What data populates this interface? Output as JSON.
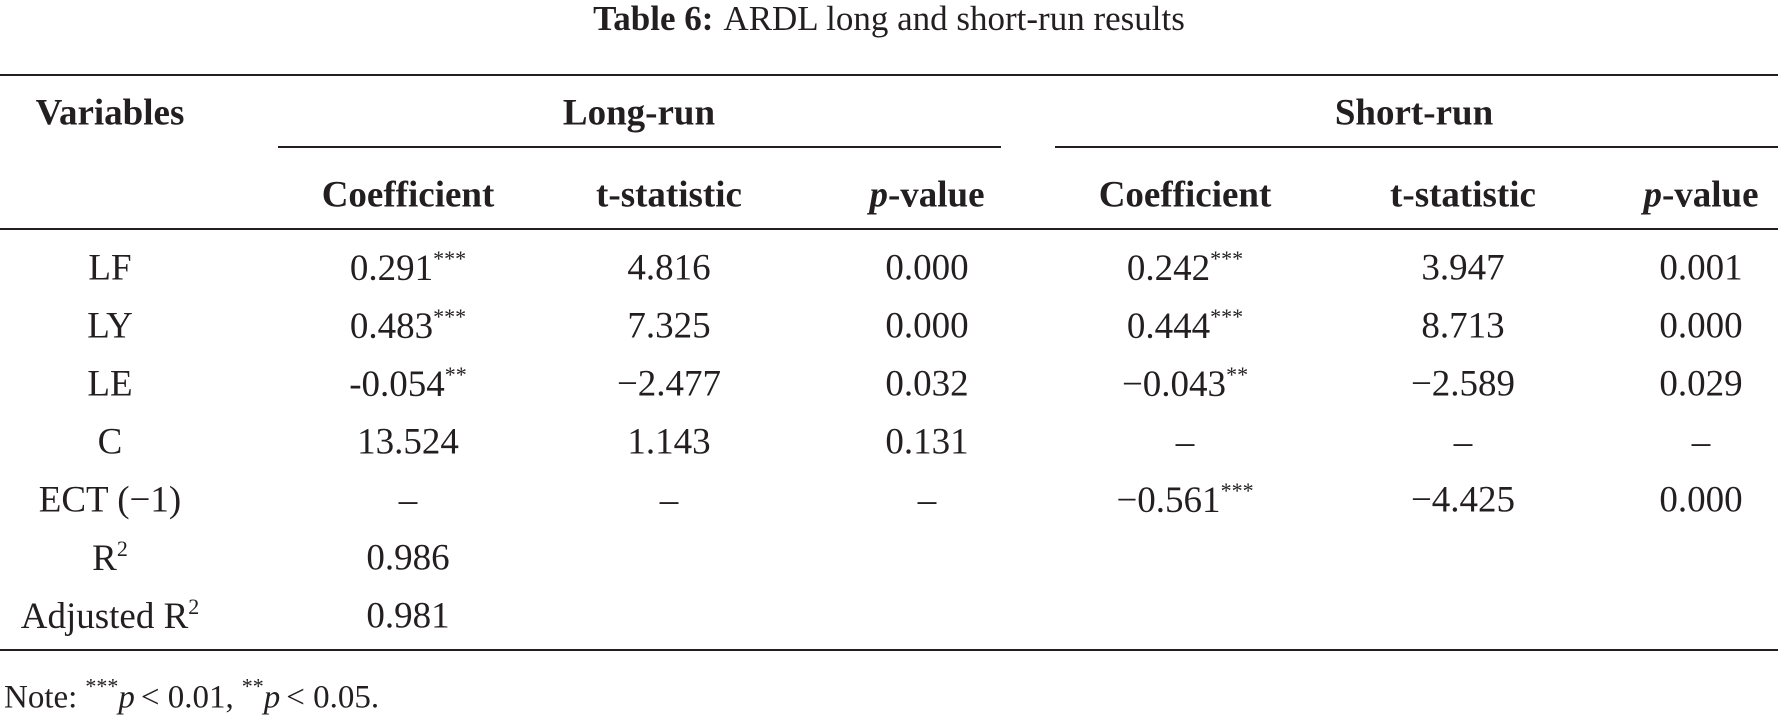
{
  "title": {
    "label": "Table 6:",
    "text": "ARDL long and short-run results"
  },
  "table": {
    "variables_header": "Variables",
    "groups": [
      "Long-run",
      "Short-run"
    ],
    "columns": [
      "Coefficient",
      "t-statistic",
      {
        "italic": "p",
        "text": "-value"
      },
      "Coefficient",
      "t-statistic",
      {
        "italic": "p",
        "text": "-value"
      }
    ],
    "rows": [
      [
        "LF",
        {
          "text": "0.291",
          "stars": "***"
        },
        "4.816",
        "0.000",
        {
          "text": "0.242",
          "stars": "***"
        },
        "3.947",
        "0.001"
      ],
      [
        "LY",
        {
          "text": "0.483",
          "stars": "***"
        },
        "7.325",
        "0.000",
        {
          "text": "0.444",
          "stars": "***"
        },
        "8.713",
        "0.000"
      ],
      [
        "LE",
        {
          "text": "-0.054",
          "stars": "**"
        },
        "−2.477",
        "0.032",
        {
          "text": "−0.043",
          "stars": "**"
        },
        "−2.589",
        "0.029"
      ],
      [
        "C",
        "13.524",
        "1.143",
        "0.131",
        "–",
        "–",
        "–"
      ],
      [
        "ECT (−1)",
        "–",
        "–",
        "–",
        {
          "text": "−0.561",
          "stars": "***"
        },
        "−4.425",
        "0.000"
      ],
      [
        {
          "text": "R",
          "sup": "2"
        },
        "0.986"
      ],
      [
        {
          "text": "Adjusted R",
          "sup": "2"
        },
        "0.981"
      ]
    ]
  },
  "note": {
    "label": "Note:",
    "items": [
      {
        "stars": "***",
        "symbol": "p",
        "text": "< 0.01,"
      },
      {
        "stars": "**",
        "symbol": "p",
        "text": "< 0.05."
      }
    ]
  }
}
